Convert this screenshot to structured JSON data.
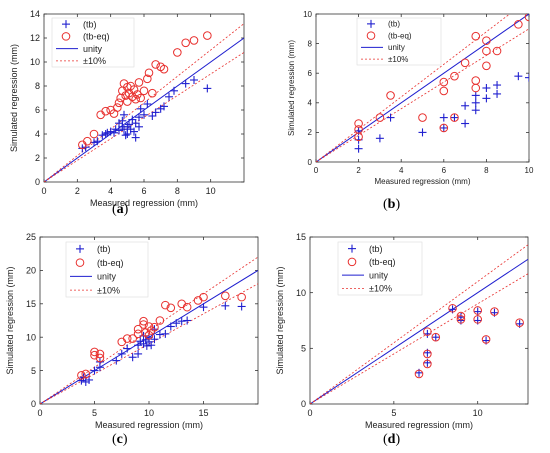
{
  "colors": {
    "tb": "#1f1fcf",
    "tbeq": "#e8302e",
    "unity": "#1f1fcf",
    "band": "#e8302e",
    "axis": "#333333"
  },
  "chart_data": [
    {
      "panel_label": "a",
      "type": "scatter",
      "xlabel": "Measured regression (mm)",
      "ylabel": "Simulated regression (mm)",
      "xlim": [
        0,
        12
      ],
      "ylim": [
        0,
        14
      ],
      "xticks": [
        0,
        2,
        4,
        6,
        8,
        10
      ],
      "yticks": [
        0,
        2,
        4,
        6,
        8,
        10,
        12,
        14
      ],
      "grid": false,
      "legend_position": "top-left",
      "legend": [
        {
          "label": "(tb)",
          "kind": "tb"
        },
        {
          "label": "(tb-eq)",
          "kind": "tbeq"
        },
        {
          "label": "unity",
          "kind": "unity"
        },
        {
          "label": "±10%",
          "kind": "band"
        }
      ],
      "series": [
        {
          "name": "(tb)",
          "kind": "tb",
          "points": [
            [
              2.3,
              2.8
            ],
            [
              2.5,
              2.9
            ],
            [
              3.0,
              3.3
            ],
            [
              3.2,
              3.4
            ],
            [
              3.5,
              3.9
            ],
            [
              3.7,
              4.0
            ],
            [
              3.8,
              4.1
            ],
            [
              4.0,
              4.2
            ],
            [
              4.2,
              4.1
            ],
            [
              4.3,
              4.4
            ],
            [
              4.5,
              4.3
            ],
            [
              4.5,
              4.9
            ],
            [
              4.7,
              4.6
            ],
            [
              4.7,
              5.1
            ],
            [
              4.8,
              5.6
            ],
            [
              4.8,
              4.4
            ],
            [
              4.9,
              3.9
            ],
            [
              5.0,
              4.6
            ],
            [
              5.0,
              4.0
            ],
            [
              5.1,
              4.8
            ],
            [
              5.2,
              4.4
            ],
            [
              5.3,
              5.2
            ],
            [
              5.4,
              4.2
            ],
            [
              5.5,
              4.9
            ],
            [
              5.5,
              3.7
            ],
            [
              5.7,
              4.6
            ],
            [
              5.7,
              5.4
            ],
            [
              5.8,
              6.1
            ],
            [
              6.0,
              5.6
            ],
            [
              6.2,
              6.5
            ],
            [
              6.5,
              5.5
            ],
            [
              6.7,
              5.8
            ],
            [
              7.0,
              6.1
            ],
            [
              7.2,
              6.3
            ],
            [
              7.5,
              7.1
            ],
            [
              7.8,
              7.6
            ],
            [
              8.5,
              8.2
            ],
            [
              9.0,
              8.5
            ],
            [
              9.8,
              7.8
            ]
          ]
        },
        {
          "name": "(tb-eq)",
          "kind": "tbeq",
          "points": [
            [
              2.3,
              3.1
            ],
            [
              2.6,
              3.4
            ],
            [
              3.0,
              4.0
            ],
            [
              3.4,
              5.6
            ],
            [
              3.7,
              5.9
            ],
            [
              4.0,
              6.0
            ],
            [
              4.2,
              5.7
            ],
            [
              4.4,
              6.2
            ],
            [
              4.5,
              6.6
            ],
            [
              4.6,
              7.0
            ],
            [
              4.7,
              7.6
            ],
            [
              4.8,
              8.2
            ],
            [
              4.9,
              7.2
            ],
            [
              5.0,
              7.9
            ],
            [
              5.0,
              6.7
            ],
            [
              5.1,
              7.4
            ],
            [
              5.2,
              8.0
            ],
            [
              5.3,
              7.1
            ],
            [
              5.4,
              7.7
            ],
            [
              5.5,
              6.9
            ],
            [
              5.6,
              7.3
            ],
            [
              5.7,
              8.3
            ],
            [
              5.8,
              7.0
            ],
            [
              6.0,
              7.6
            ],
            [
              6.2,
              8.6
            ],
            [
              6.3,
              9.1
            ],
            [
              6.5,
              7.4
            ],
            [
              6.7,
              9.8
            ],
            [
              7.0,
              9.6
            ],
            [
              7.2,
              9.4
            ],
            [
              8.0,
              10.8
            ],
            [
              8.5,
              11.6
            ],
            [
              9.0,
              11.8
            ],
            [
              9.8,
              12.2
            ]
          ]
        }
      ]
    },
    {
      "panel_label": "b",
      "type": "scatter",
      "xlabel": "Measured regression (mm)",
      "ylabel": "Simulated regression (mm)",
      "xlim": [
        0,
        10
      ],
      "ylim": [
        0,
        10
      ],
      "xticks": [
        0,
        2,
        4,
        6,
        8,
        10
      ],
      "yticks": [
        0,
        2,
        4,
        6,
        8,
        10
      ],
      "grid": false,
      "legend_position": "top-right",
      "legend": [
        {
          "label": "(tb)",
          "kind": "tb"
        },
        {
          "label": "(tb-eq)",
          "kind": "tbeq"
        },
        {
          "label": "unity",
          "kind": "unity"
        },
        {
          "label": "±10%",
          "kind": "band"
        }
      ],
      "series": [
        {
          "name": "(tb)",
          "kind": "tb",
          "points": [
            [
              2.0,
              0.9
            ],
            [
              2.0,
              1.5
            ],
            [
              2.0,
              2.1
            ],
            [
              3.0,
              1.6
            ],
            [
              3.5,
              3.0
            ],
            [
              5.0,
              2.0
            ],
            [
              6.0,
              2.3
            ],
            [
              6.0,
              3.0
            ],
            [
              6.5,
              3.0
            ],
            [
              7.0,
              2.6
            ],
            [
              7.0,
              3.8
            ],
            [
              7.5,
              4.0
            ],
            [
              7.5,
              4.5
            ],
            [
              7.5,
              3.5
            ],
            [
              8.0,
              4.3
            ],
            [
              8.0,
              5.0
            ],
            [
              8.5,
              4.6
            ],
            [
              8.5,
              5.2
            ],
            [
              9.5,
              5.8
            ],
            [
              10.0,
              5.7
            ]
          ]
        },
        {
          "name": "(tb-eq)",
          "kind": "tbeq",
          "points": [
            [
              2.0,
              2.2
            ],
            [
              2.0,
              2.6
            ],
            [
              2.0,
              1.7
            ],
            [
              3.0,
              3.0
            ],
            [
              3.5,
              4.5
            ],
            [
              5.0,
              3.0
            ],
            [
              6.0,
              4.8
            ],
            [
              6.0,
              5.4
            ],
            [
              6.0,
              2.3
            ],
            [
              6.5,
              3.0
            ],
            [
              6.5,
              5.8
            ],
            [
              7.0,
              6.7
            ],
            [
              7.5,
              5.0
            ],
            [
              7.5,
              5.5
            ],
            [
              7.5,
              8.5
            ],
            [
              8.0,
              6.5
            ],
            [
              8.0,
              7.5
            ],
            [
              8.0,
              8.2
            ],
            [
              8.5,
              7.5
            ],
            [
              9.5,
              9.3
            ],
            [
              10.0,
              9.8
            ]
          ]
        }
      ]
    },
    {
      "panel_label": "c",
      "type": "scatter",
      "xlabel": "Measured regression (mm)",
      "ylabel": "Simulated regression (mm)",
      "xlim": [
        0,
        20
      ],
      "ylim": [
        0,
        25
      ],
      "xticks": [
        0,
        5,
        10,
        15
      ],
      "yticks": [
        0,
        5,
        10,
        15,
        20,
        25
      ],
      "grid": false,
      "legend_position": "top-left",
      "legend": [
        {
          "label": "(tb)",
          "kind": "tb"
        },
        {
          "label": "(tb-eq)",
          "kind": "tbeq"
        },
        {
          "label": "unity",
          "kind": "unity"
        },
        {
          "label": "±10%",
          "kind": "band"
        }
      ],
      "series": [
        {
          "name": "(tb)",
          "kind": "tb",
          "points": [
            [
              3.8,
              3.5
            ],
            [
              4.0,
              4.0
            ],
            [
              4.2,
              3.3
            ],
            [
              4.5,
              3.6
            ],
            [
              5.0,
              5.0
            ],
            [
              5.5,
              5.5
            ],
            [
              5.5,
              6.3
            ],
            [
              7.0,
              6.5
            ],
            [
              7.5,
              7.5
            ],
            [
              8.0,
              8.3
            ],
            [
              8.5,
              7.0
            ],
            [
              9.0,
              8.8
            ],
            [
              9.0,
              7.5
            ],
            [
              9.2,
              9.4
            ],
            [
              9.5,
              9.0
            ],
            [
              9.5,
              10.2
            ],
            [
              9.7,
              9.6
            ],
            [
              9.8,
              8.7
            ],
            [
              10.0,
              9.3
            ],
            [
              10.0,
              10.0
            ],
            [
              10.2,
              8.8
            ],
            [
              10.5,
              9.7
            ],
            [
              10.5,
              11.2
            ],
            [
              11.0,
              10.4
            ],
            [
              11.5,
              10.5
            ],
            [
              12.0,
              11.6
            ],
            [
              12.5,
              12.1
            ],
            [
              13.0,
              12.4
            ],
            [
              13.5,
              12.5
            ],
            [
              15.0,
              14.5
            ],
            [
              17.0,
              14.7
            ],
            [
              18.5,
              14.6
            ]
          ]
        },
        {
          "name": "(tb-eq)",
          "kind": "tbeq",
          "points": [
            [
              3.8,
              4.3
            ],
            [
              4.2,
              4.5
            ],
            [
              5.0,
              7.8
            ],
            [
              5.0,
              7.3
            ],
            [
              5.5,
              6.9
            ],
            [
              5.5,
              7.5
            ],
            [
              7.5,
              9.3
            ],
            [
              8.0,
              9.8
            ],
            [
              8.5,
              9.8
            ],
            [
              9.0,
              10.5
            ],
            [
              9.0,
              11.2
            ],
            [
              9.5,
              11.9
            ],
            [
              9.5,
              12.4
            ],
            [
              9.7,
              10.7
            ],
            [
              10.0,
              11.6
            ],
            [
              10.0,
              10.3
            ],
            [
              10.2,
              11.0
            ],
            [
              10.5,
              11.5
            ],
            [
              11.0,
              12.5
            ],
            [
              11.5,
              14.8
            ],
            [
              12.0,
              14.4
            ],
            [
              13.0,
              15.0
            ],
            [
              13.5,
              14.5
            ],
            [
              14.5,
              15.5
            ],
            [
              15.0,
              16.0
            ],
            [
              17.0,
              16.2
            ],
            [
              18.5,
              16.0
            ]
          ]
        }
      ]
    },
    {
      "panel_label": "d",
      "type": "scatter",
      "xlabel": "Measured regression (mm)",
      "ylabel": "Simulated regression (mm)",
      "xlim": [
        0,
        13
      ],
      "ylim": [
        0,
        15
      ],
      "xticks": [
        0,
        5,
        10
      ],
      "yticks": [
        0,
        5,
        10,
        15
      ],
      "grid": false,
      "legend_position": "top-left",
      "legend": [
        {
          "label": "(tb)",
          "kind": "tb"
        },
        {
          "label": "(tb-eq)",
          "kind": "tbeq"
        },
        {
          "label": "unity",
          "kind": "unity"
        },
        {
          "label": "±10%",
          "kind": "band"
        }
      ],
      "series": [
        {
          "name": "(tb)",
          "kind": "tb",
          "points": [
            [
              6.5,
              2.8
            ],
            [
              7.0,
              3.7
            ],
            [
              7.0,
              4.6
            ],
            [
              7.0,
              6.3
            ],
            [
              7.5,
              6.0
            ],
            [
              8.5,
              8.5
            ],
            [
              9.0,
              7.5
            ],
            [
              9.0,
              7.8
            ],
            [
              10.0,
              7.5
            ],
            [
              10.0,
              8.3
            ],
            [
              10.5,
              5.7
            ],
            [
              11.0,
              8.2
            ],
            [
              12.5,
              7.2
            ]
          ]
        },
        {
          "name": "(tb-eq)",
          "kind": "tbeq",
          "points": [
            [
              6.5,
              2.7
            ],
            [
              7.0,
              3.6
            ],
            [
              7.0,
              4.5
            ],
            [
              7.0,
              6.5
            ],
            [
              7.5,
              6.0
            ],
            [
              8.5,
              8.6
            ],
            [
              9.0,
              7.6
            ],
            [
              9.0,
              7.9
            ],
            [
              10.0,
              7.6
            ],
            [
              10.0,
              8.4
            ],
            [
              10.5,
              5.8
            ],
            [
              11.0,
              8.3
            ],
            [
              12.5,
              7.3
            ]
          ]
        }
      ]
    }
  ]
}
